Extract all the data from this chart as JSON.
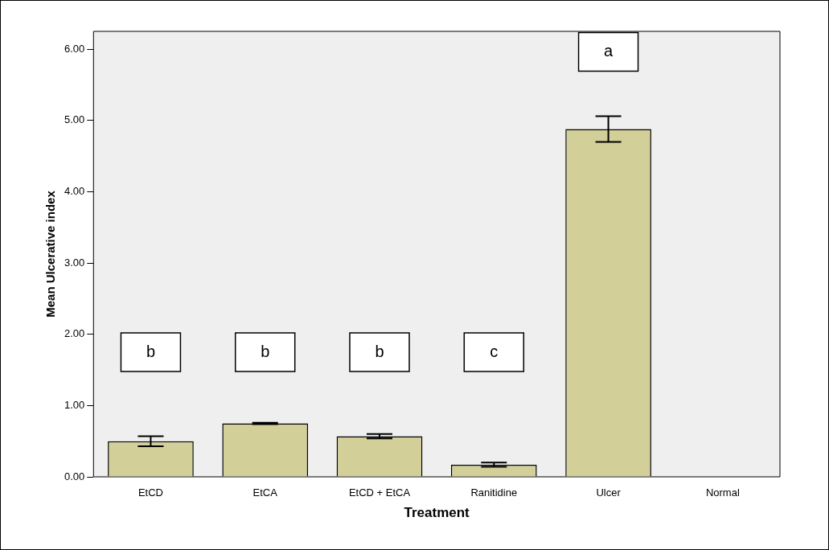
{
  "chart_data": {
    "type": "bar",
    "xlabel": "Treatment",
    "ylabel": "Mean Ulcerative index",
    "categories": [
      "EtCD",
      "EtCA",
      "EtCD + EtCA",
      "Ranitidine",
      "Ulcer",
      "Normal"
    ],
    "values": [
      0.5,
      0.75,
      0.57,
      0.17,
      4.88,
      0
    ],
    "errors": [
      0.07,
      0.01,
      0.03,
      0.03,
      0.18,
      null
    ],
    "color": "#d3cf98",
    "ylim": [
      0,
      6.25
    ],
    "yticks": [
      {
        "value": 0,
        "label": "0.00"
      },
      {
        "value": 1,
        "label": "1.00"
      },
      {
        "value": 2,
        "label": "2.00"
      },
      {
        "value": 3,
        "label": "3.00"
      },
      {
        "value": 4,
        "label": "4.00"
      },
      {
        "value": 5,
        "label": "5.00"
      },
      {
        "value": 6,
        "label": "6.00"
      }
    ],
    "grid": false,
    "legend": false,
    "annotations": [
      "b",
      "b",
      "b",
      "c",
      "a"
    ]
  }
}
